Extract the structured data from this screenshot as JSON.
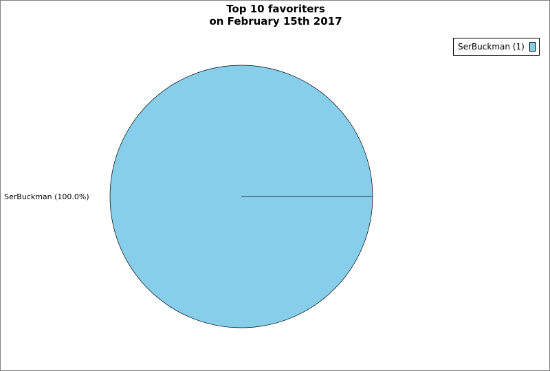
{
  "chart_data": {
    "type": "pie",
    "title": "Top 10 favoriters",
    "subtitle": "on February 15th 2017",
    "slices": [
      {
        "label": "SerBuckman",
        "value": 1,
        "percent_label": "SerBuckman (100.0%)",
        "legend_label": "SerBuckman (1)",
        "color": "#87CEEB"
      }
    ],
    "legend_placement": "top-right"
  }
}
